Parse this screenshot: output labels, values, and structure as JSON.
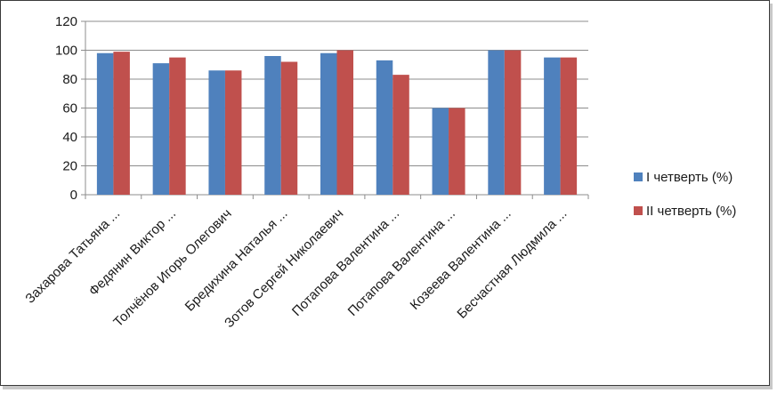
{
  "chart_data": {
    "type": "bar",
    "title": "",
    "xlabel": "",
    "ylabel": "",
    "ylim": [
      0,
      120
    ],
    "yticks": [
      0,
      20,
      40,
      60,
      80,
      100,
      120
    ],
    "grid": true,
    "legend_position": "right",
    "categories": [
      "Захарова Татьяна ...",
      "Федянин Виктор ...",
      "Толчёнов Игорь Олегович",
      "Бредихина Наталья ...",
      "Зотов Сергей Николаевич",
      "Потапова Валентина ...",
      "Потапова Валентина ...",
      "Козеева Валентина ...",
      "Бесчастная Людмила ..."
    ],
    "series": [
      {
        "name": "I четверть (%)",
        "color": "#4f81bd",
        "values": [
          98,
          91,
          86,
          96,
          98,
          93,
          60,
          100,
          95
        ]
      },
      {
        "name": "II четверть (%)",
        "color": "#c0504d",
        "values": [
          99,
          95,
          86,
          92,
          100,
          83,
          60,
          100,
          95
        ]
      }
    ]
  }
}
